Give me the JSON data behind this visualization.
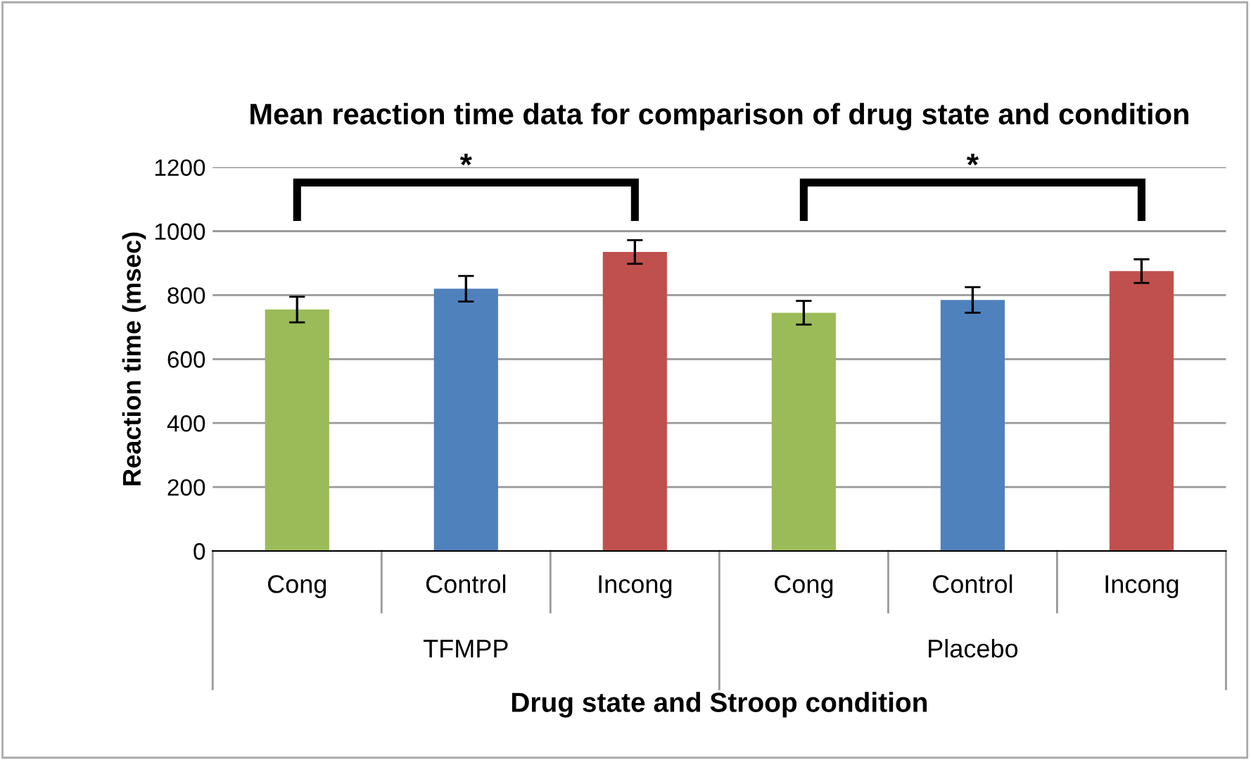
{
  "chart_data": {
    "type": "bar",
    "title": "Mean reaction time data for comparison of drug state and condition",
    "xlabel": "Drug state and Stroop condition",
    "ylabel": "Reaction time (msec)",
    "categories": [
      "Cong",
      "Control",
      "Incong",
      "Cong",
      "Control",
      "Incong"
    ],
    "values": [
      755,
      820,
      935,
      745,
      785,
      875
    ],
    "errors": [
      40,
      40,
      37,
      37,
      40,
      37
    ],
    "colors": [
      "#9bbb59",
      "#4f81bd",
      "#c0504d",
      "#9bbb59",
      "#4f81bd",
      "#c0504d"
    ],
    "ylim": [
      0,
      1200
    ],
    "yticks": [
      0,
      200,
      400,
      600,
      800,
      1000,
      1200
    ],
    "grid": "y",
    "annotations": [
      "*",
      "*",
      "TFMPP",
      "Placebo"
    ]
  }
}
